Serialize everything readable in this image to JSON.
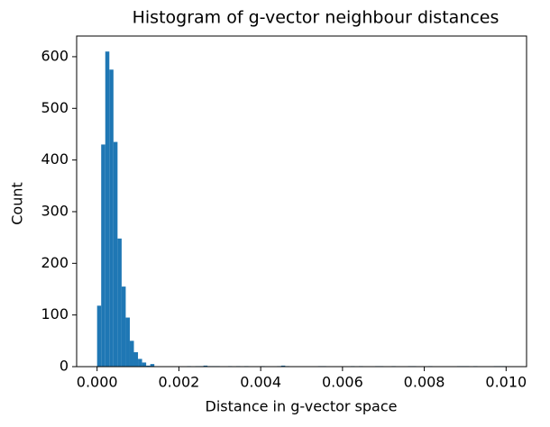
{
  "chart_data": {
    "type": "histogram",
    "title": "Histogram of g-vector neighbour distances",
    "xlabel": "Distance in g-vector space",
    "ylabel": "Count",
    "color": "#1f77b4",
    "bins": [
      0,
      0.0001,
      0.0002,
      0.0003,
      0.0004,
      0.0005,
      0.0006,
      0.0007,
      0.0008,
      0.0009,
      0.001,
      0.0011,
      0.0012,
      0.0013,
      0.0014,
      0.0015,
      0.0016,
      0.0017,
      0.0018,
      0.0019,
      0.002,
      0.0021,
      0.0022,
      0.0023,
      0.0024,
      0.0025,
      0.0026,
      0.0027,
      0.0028,
      0.0029,
      0.003,
      0.0031,
      0.0032,
      0.0033,
      0.0034,
      0.0035,
      0.0036,
      0.0037,
      0.0038,
      0.0039,
      0.004,
      0.0041,
      0.0042,
      0.0043,
      0.0044,
      0.0045,
      0.0046,
      0.0047,
      0.0048,
      0.0049,
      0.005,
      0.0051,
      0.0052,
      0.0053,
      0.0054,
      0.0055,
      0.0056,
      0.0057,
      0.0058,
      0.0059,
      0.006,
      0.0061,
      0.0062,
      0.0063,
      0.0064,
      0.0065,
      0.0066,
      0.0067,
      0.0068,
      0.0069,
      0.007,
      0.0071,
      0.0072,
      0.0073,
      0.0074,
      0.0075,
      0.0076,
      0.0077,
      0.0078,
      0.0079,
      0.008,
      0.0081,
      0.0082,
      0.0083,
      0.0084,
      0.0085,
      0.0086,
      0.0087,
      0.0088,
      0.0089,
      0.009,
      0.0091,
      0.0092,
      0.0093,
      0.0094,
      0.0095,
      0.0096,
      0.0097,
      0.0098,
      0.0099,
      0.01
    ],
    "values": [
      118,
      430,
      610,
      575,
      435,
      248,
      155,
      95,
      50,
      28,
      15,
      8,
      2,
      5,
      0,
      0,
      0,
      0,
      0,
      0,
      0,
      0,
      1,
      0,
      1,
      1,
      2,
      1,
      1,
      1,
      0,
      0,
      1,
      0,
      1,
      0,
      1,
      0,
      0,
      0,
      1,
      0,
      0,
      0,
      1,
      2,
      1,
      0,
      0,
      0,
      0,
      0,
      0,
      0,
      1,
      1,
      0,
      0,
      0,
      0,
      0,
      0,
      1,
      0,
      1,
      0,
      0,
      0,
      1,
      1,
      0,
      0,
      1,
      0,
      0,
      0,
      1,
      1,
      0,
      0,
      0,
      1,
      0,
      0,
      0,
      0,
      0,
      0,
      1,
      1,
      1,
      0,
      1,
      0,
      0,
      0,
      0,
      1,
      1,
      1
    ],
    "xlim": [
      -0.0005,
      0.0105
    ],
    "ylim": [
      0,
      640
    ],
    "xticks": [
      {
        "value": 0,
        "label": "0.000"
      },
      {
        "value": 0.002,
        "label": "0.002"
      },
      {
        "value": 0.004,
        "label": "0.004"
      },
      {
        "value": 0.006,
        "label": "0.006"
      },
      {
        "value": 0.008,
        "label": "0.008"
      },
      {
        "value": 0.01,
        "label": "0.010"
      }
    ],
    "yticks": [
      0,
      100,
      200,
      300,
      400,
      500,
      600
    ]
  }
}
